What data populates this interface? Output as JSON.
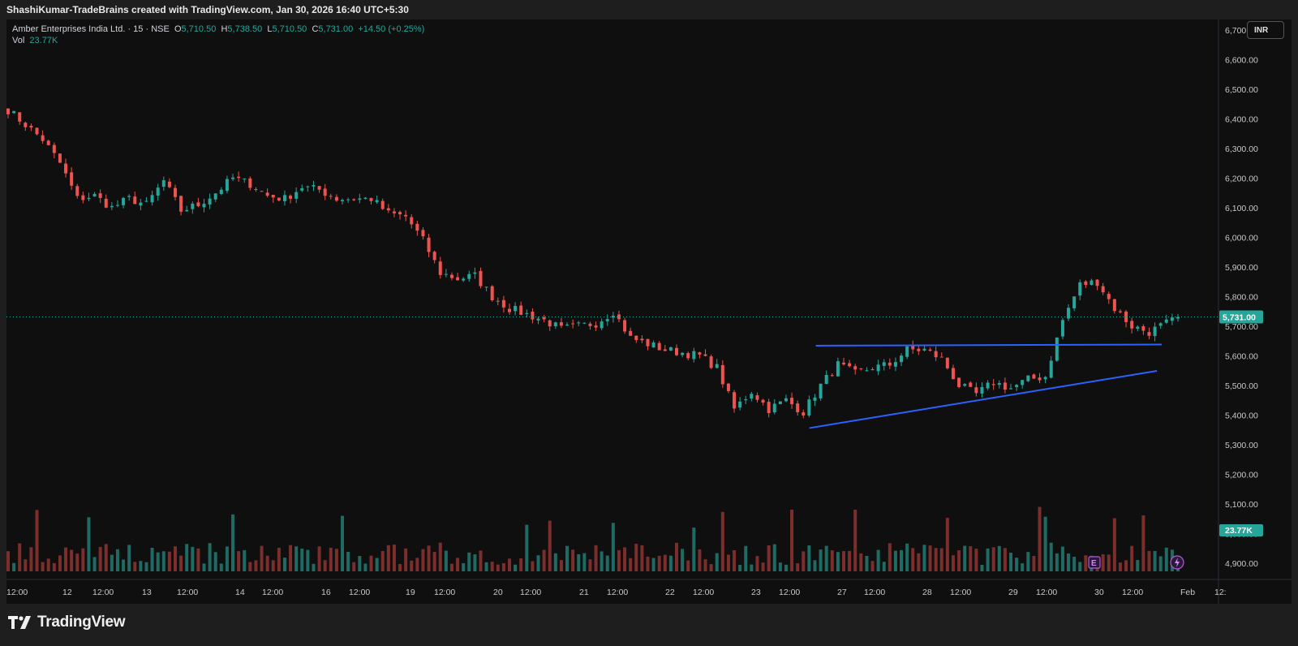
{
  "header": {
    "credit": "ShashiKumar-TradeBrains created with TradingView.com, Jan 30, 2026 16:40 UTC+5:30"
  },
  "legend": {
    "symbol": "Amber Enterprises India Ltd. · 15 · NSE",
    "o_key": "O",
    "o_val": "5,710.50",
    "h_key": "H",
    "h_val": "5,738.50",
    "l_key": "L",
    "l_val": "5,710.50",
    "c_key": "C",
    "c_val": "5,731.00",
    "change": "+14.50 (+0.25%)",
    "vol_key": "Vol",
    "vol_val": "23.77K"
  },
  "currency": "INR",
  "footer": {
    "brand": "TradingView"
  },
  "colors": {
    "up": "#26a69a",
    "down": "#ef5350",
    "vol_up": "#1f6b63",
    "vol_down": "#7b2e2c",
    "trendline": "#2962ff",
    "background": "#0f0f0f"
  },
  "icons": [
    "tradingview-logo-icon",
    "earnings-marker-icon",
    "dividend-lightning-icon"
  ],
  "chart_data": {
    "type": "candlestick",
    "instrument": "Amber Enterprises India Ltd.",
    "interval": "15",
    "exchange": "NSE",
    "ylim": [
      4845,
      6735
    ],
    "y_ticks": [
      6700,
      6600,
      6500,
      6400,
      6300,
      6200,
      6100,
      6000,
      5900,
      5800,
      5700,
      5600,
      5500,
      5400,
      5300,
      5200,
      5100,
      5000,
      4900
    ],
    "y_tick_labels": [
      "6,700.00",
      "6,600.00",
      "6,500.00",
      "6,400.00",
      "6,300.00",
      "6,200.00",
      "6,100.00",
      "6,000.00",
      "5,900.00",
      "5,800.00",
      "5,700.00",
      "5,600.00",
      "5,500.00",
      "5,400.00",
      "5,300.00",
      "5,200.00",
      "5,100.00",
      "5,000.00",
      "4,900.00"
    ],
    "x_tick_labels": [
      "12:00",
      "12",
      "12:00",
      "13",
      "12:00",
      "14",
      "12:00",
      "16",
      "12:00",
      "19",
      "12:00",
      "20",
      "12:00",
      "21",
      "12:00",
      "22",
      "12:00",
      "23",
      "12:00",
      "27",
      "12:00",
      "28",
      "12:00",
      "29",
      "12:00",
      "30",
      "12:00",
      "Feb",
      "12:"
    ],
    "last_price": 5731.0,
    "last_price_label": "5,731.00",
    "last_volume_label": "23.77K",
    "bars_per_session": 25,
    "price_path": [
      6430,
      6380,
      6330,
      6250,
      6130,
      6140,
      6100,
      6130,
      6110,
      6190,
      6090,
      6110,
      6150,
      6200,
      6180,
      6140,
      6130,
      6170,
      6160,
      6130,
      6130,
      6130,
      6080,
      6070,
      5990,
      5880,
      5860,
      5870,
      5800,
      5760,
      5740,
      5720,
      5690,
      5700,
      5710,
      5750,
      5660,
      5640,
      5620,
      5610,
      5600,
      5560,
      5420,
      5480,
      5420,
      5450,
      5410,
      5500,
      5570,
      5540,
      5560,
      5570,
      5620,
      5620,
      5590,
      5500,
      5470,
      5510,
      5490,
      5520,
      5530,
      5720,
      5840,
      5850,
      5760,
      5700,
      5680,
      5710,
      5731
    ],
    "annotations": {
      "resistance_line": {
        "start": {
          "time_frac": 0.6905,
          "price": 5634
        },
        "end": {
          "time_frac": 0.9862,
          "price": 5638
        }
      },
      "support_trendline": {
        "start": {
          "time_frac": 0.6849,
          "price": 5356
        },
        "end": {
          "time_frac": 0.9821,
          "price": 5549
        }
      },
      "earnings_marker": "E"
    }
  }
}
